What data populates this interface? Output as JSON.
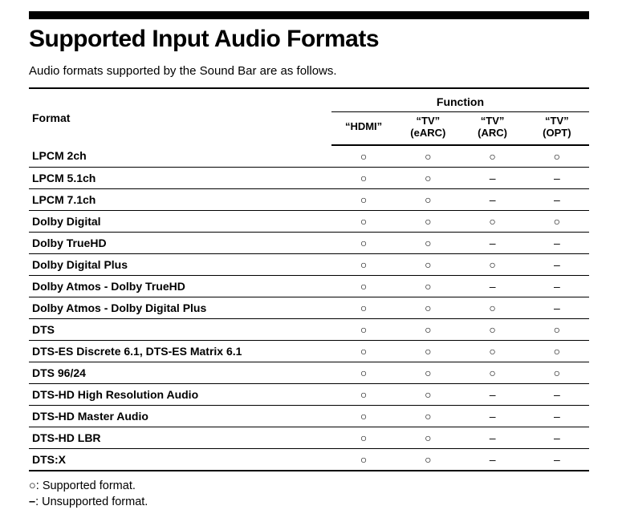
{
  "title": "Supported Input Audio Formats",
  "intro": "Audio formats supported by the Sound Bar are as follows.",
  "table": {
    "header_format": "Format",
    "header_function": "Function",
    "columns": [
      {
        "line1": "“HDMI”",
        "line2": ""
      },
      {
        "line1": "“TV”",
        "line2": "(eARC)"
      },
      {
        "line1": "“TV”",
        "line2": "(ARC)"
      },
      {
        "line1": "“TV”",
        "line2": "(OPT)"
      }
    ],
    "rows": [
      {
        "format": "LPCM 2ch",
        "v": [
          "O",
          "O",
          "O",
          "O"
        ]
      },
      {
        "format": "LPCM 5.1ch",
        "v": [
          "O",
          "O",
          "-",
          "-"
        ]
      },
      {
        "format": "LPCM 7.1ch",
        "v": [
          "O",
          "O",
          "-",
          "-"
        ]
      },
      {
        "format": "Dolby Digital",
        "v": [
          "O",
          "O",
          "O",
          "O"
        ]
      },
      {
        "format": "Dolby TrueHD",
        "v": [
          "O",
          "O",
          "-",
          "-"
        ]
      },
      {
        "format": "Dolby Digital Plus",
        "v": [
          "O",
          "O",
          "O",
          "-"
        ]
      },
      {
        "format": "Dolby Atmos - Dolby TrueHD",
        "v": [
          "O",
          "O",
          "-",
          "-"
        ]
      },
      {
        "format": "Dolby Atmos - Dolby Digital Plus",
        "v": [
          "O",
          "O",
          "O",
          "-"
        ]
      },
      {
        "format": "DTS",
        "v": [
          "O",
          "O",
          "O",
          "O"
        ]
      },
      {
        "format": "DTS-ES Discrete 6.1, DTS-ES Matrix 6.1",
        "v": [
          "O",
          "O",
          "O",
          "O"
        ]
      },
      {
        "format": "DTS 96/24",
        "v": [
          "O",
          "O",
          "O",
          "O"
        ]
      },
      {
        "format": "DTS-HD High Resolution Audio",
        "v": [
          "O",
          "O",
          "-",
          "-"
        ]
      },
      {
        "format": "DTS-HD Master Audio",
        "v": [
          "O",
          "O",
          "-",
          "-"
        ]
      },
      {
        "format": "DTS-HD LBR",
        "v": [
          "O",
          "O",
          "-",
          "-"
        ]
      },
      {
        "format": "DTS:X",
        "v": [
          "O",
          "O",
          "-",
          "-"
        ]
      }
    ]
  },
  "legend": {
    "supported": ": Supported format.",
    "unsupported": ": Unsupported format."
  },
  "glyphs": {
    "O": "○",
    "-": "–",
    "legend_circle": "○",
    "legend_dash": "–"
  },
  "style": {
    "text_color": "#000000",
    "background_color": "#ffffff",
    "rule_color": "#000000"
  }
}
